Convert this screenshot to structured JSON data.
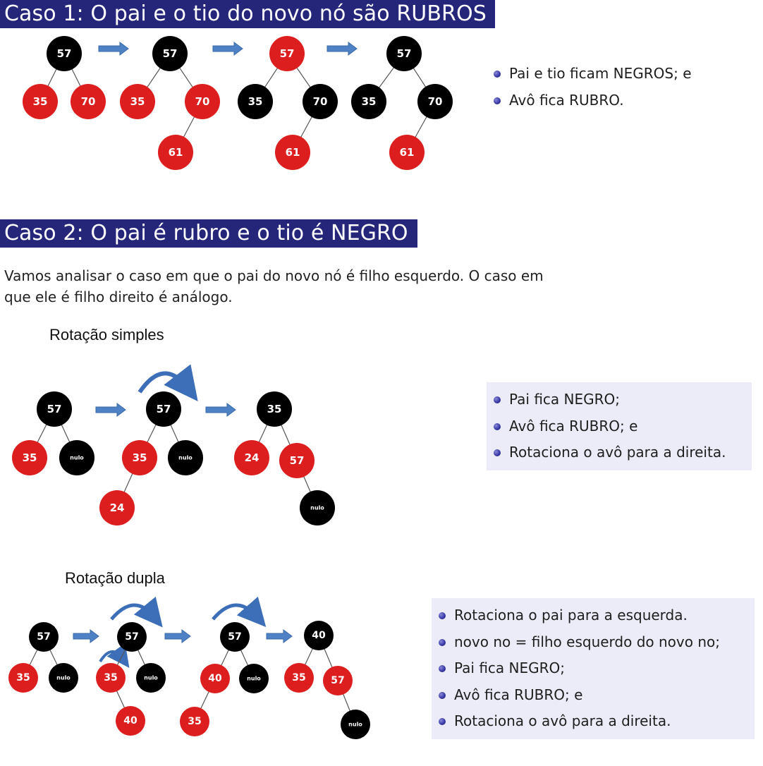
{
  "case1": {
    "title": "Caso 1: O pai e o tio do novo nó são RUBROS",
    "bullets": [
      "Pai e tio ficam NEGROS; e",
      "Avô fica RUBRO."
    ]
  },
  "case2": {
    "title": "Caso 2: O pai é rubro e o tio é NEGRO",
    "paragraph": "Vamos analisar o caso em que o pai do novo nó é filho esquerdo. O caso em que ele é filho direito é análogo."
  },
  "simple": {
    "subtitle": "Rotação simples",
    "bullets": [
      "Pai fica NEGRO;",
      "Avô fica RUBRO; e",
      "Rotaciona o avô para a direita."
    ]
  },
  "double": {
    "subtitle": "Rotação dupla",
    "bullets": [
      "Rotaciona o pai para a esquerda.",
      "novo no = filho esquerdo do novo no;",
      "Pai fica NEGRO;",
      "Avô fica RUBRO; e",
      "Rotaciona o avô para a direita."
    ]
  },
  "colors": {
    "red_node": "#dc1e1e",
    "black_node": "#000000",
    "banner": "#25257a",
    "arrow": "#4f82c4"
  },
  "trees": [
    {
      "name": "c1-t1",
      "nodes": [
        {
          "label": "57",
          "color": "black"
        },
        {
          "label": "35",
          "color": "red"
        },
        {
          "label": "70",
          "color": "red"
        }
      ]
    },
    {
      "name": "c1-t2",
      "nodes": [
        {
          "label": "57",
          "color": "black"
        },
        {
          "label": "35",
          "color": "red"
        },
        {
          "label": "70",
          "color": "red"
        },
        {
          "label": "61",
          "color": "red"
        }
      ]
    },
    {
      "name": "c1-t3",
      "nodes": [
        {
          "label": "57",
          "color": "red"
        },
        {
          "label": "35",
          "color": "black"
        },
        {
          "label": "70",
          "color": "black"
        },
        {
          "label": "61",
          "color": "red"
        }
      ]
    },
    {
      "name": "c1-t4",
      "nodes": [
        {
          "label": "57",
          "color": "black"
        },
        {
          "label": "35",
          "color": "black"
        },
        {
          "label": "70",
          "color": "black"
        },
        {
          "label": "61",
          "color": "red"
        }
      ]
    },
    {
      "name": "rs-t1",
      "nodes": [
        {
          "label": "57",
          "color": "black"
        },
        {
          "label": "35",
          "color": "red"
        },
        {
          "label": "nulo",
          "color": "black"
        }
      ]
    },
    {
      "name": "rs-t2",
      "nodes": [
        {
          "label": "57",
          "color": "black"
        },
        {
          "label": "35",
          "color": "red"
        },
        {
          "label": "nulo",
          "color": "black"
        },
        {
          "label": "24",
          "color": "red"
        }
      ]
    },
    {
      "name": "rs-t3",
      "nodes": [
        {
          "label": "35",
          "color": "black"
        },
        {
          "label": "24",
          "color": "red"
        },
        {
          "label": "57",
          "color": "red"
        },
        {
          "label": "nulo",
          "color": "black"
        }
      ]
    },
    {
      "name": "rd-t1",
      "nodes": [
        {
          "label": "57",
          "color": "black"
        },
        {
          "label": "35",
          "color": "red"
        },
        {
          "label": "nulo",
          "color": "black"
        }
      ]
    },
    {
      "name": "rd-t2",
      "nodes": [
        {
          "label": "57",
          "color": "black"
        },
        {
          "label": "35",
          "color": "red"
        },
        {
          "label": "nulo",
          "color": "black"
        },
        {
          "label": "40",
          "color": "red"
        }
      ]
    },
    {
      "name": "rd-t3",
      "nodes": [
        {
          "label": "57",
          "color": "black"
        },
        {
          "label": "40",
          "color": "red"
        },
        {
          "label": "nulo",
          "color": "black"
        },
        {
          "label": "35",
          "color": "red"
        }
      ]
    },
    {
      "name": "rd-t4",
      "nodes": [
        {
          "label": "40",
          "color": "black"
        },
        {
          "label": "35",
          "color": "red"
        },
        {
          "label": "57",
          "color": "red"
        },
        {
          "label": "nulo",
          "color": "black"
        }
      ]
    }
  ]
}
